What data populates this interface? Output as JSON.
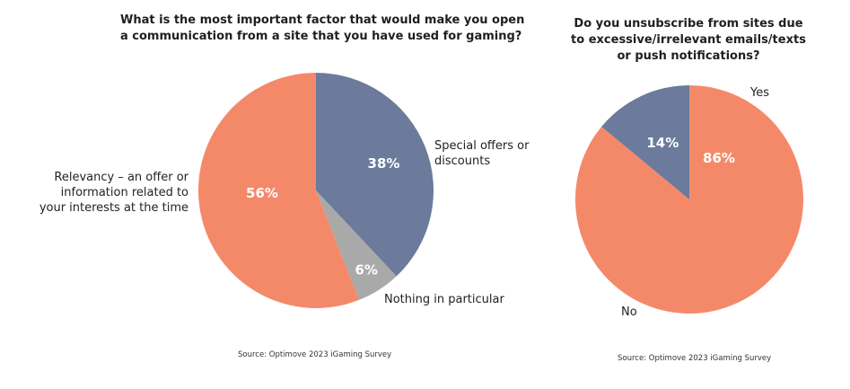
{
  "colors": {
    "orange": "#F4896A",
    "slate": "#6C7A9C",
    "gray": "#A9A9A9"
  },
  "chart_data": [
    {
      "type": "pie",
      "title_lines": [
        "What is the most important factor that would make you open",
        "a communication from a site that you have used for gaming?"
      ],
      "slices": [
        {
          "label_lines": [
            "Special offers or",
            "discounts"
          ],
          "value": 38,
          "value_label": "38%",
          "color": "#6C7A9C"
        },
        {
          "label_lines": [
            "Nothing in particular"
          ],
          "value": 6,
          "value_label": "6%",
          "color": "#A9A9A9"
        },
        {
          "label_lines": [
            "Relevancy – an offer or",
            "information related to",
            "your interests at the time"
          ],
          "value": 56,
          "value_label": "56%",
          "color": "#F4896A"
        }
      ],
      "source": "Source: Optimove 2023 iGaming Survey"
    },
    {
      "type": "pie",
      "title_lines": [
        "Do you unsubscribe from sites due",
        "to excessive/irrelevant emails/texts",
        "or push notifications?"
      ],
      "slices": [
        {
          "label_lines": [
            "Yes"
          ],
          "value": 86,
          "value_label": "86%",
          "color": "#F4896A"
        },
        {
          "label_lines": [
            "No"
          ],
          "value": 14,
          "value_label": "14%",
          "color": "#6C7A9C"
        }
      ],
      "source": "Source: Optimove 2023 iGaming Survey"
    }
  ]
}
